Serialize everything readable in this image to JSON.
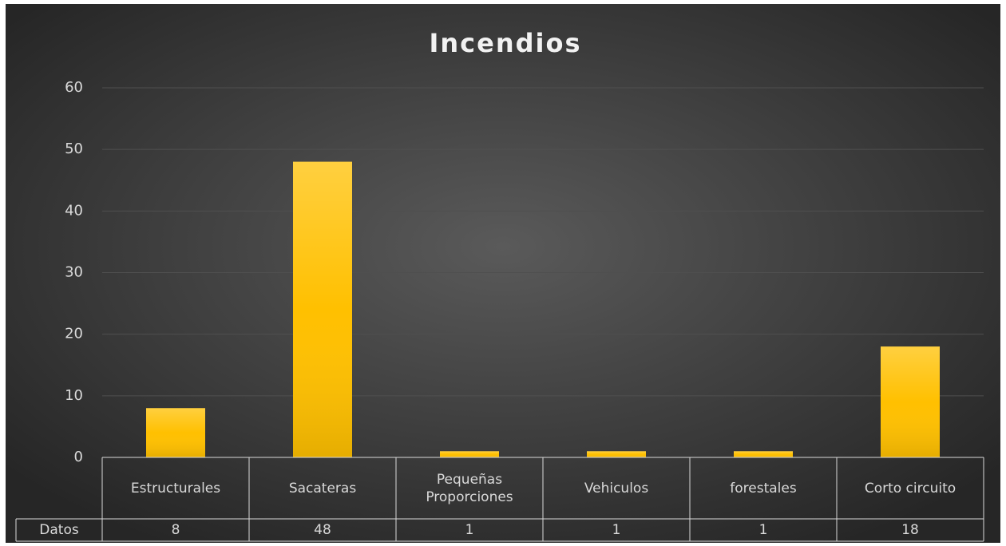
{
  "chart_data": {
    "type": "bar",
    "title": "Incendios",
    "categories": [
      "Estructurales",
      "Sacateras",
      "Pequeñas Proporciones",
      "Vehiculos",
      "forestales",
      "Corto circuito"
    ],
    "series": [
      {
        "name": "Datos",
        "color": "#ffc000",
        "values": [
          8,
          48,
          1,
          1,
          1,
          18
        ]
      }
    ],
    "ylim": [
      0,
      60
    ],
    "yticks": [
      0,
      10,
      20,
      30,
      40,
      50,
      60
    ],
    "grid": true
  }
}
